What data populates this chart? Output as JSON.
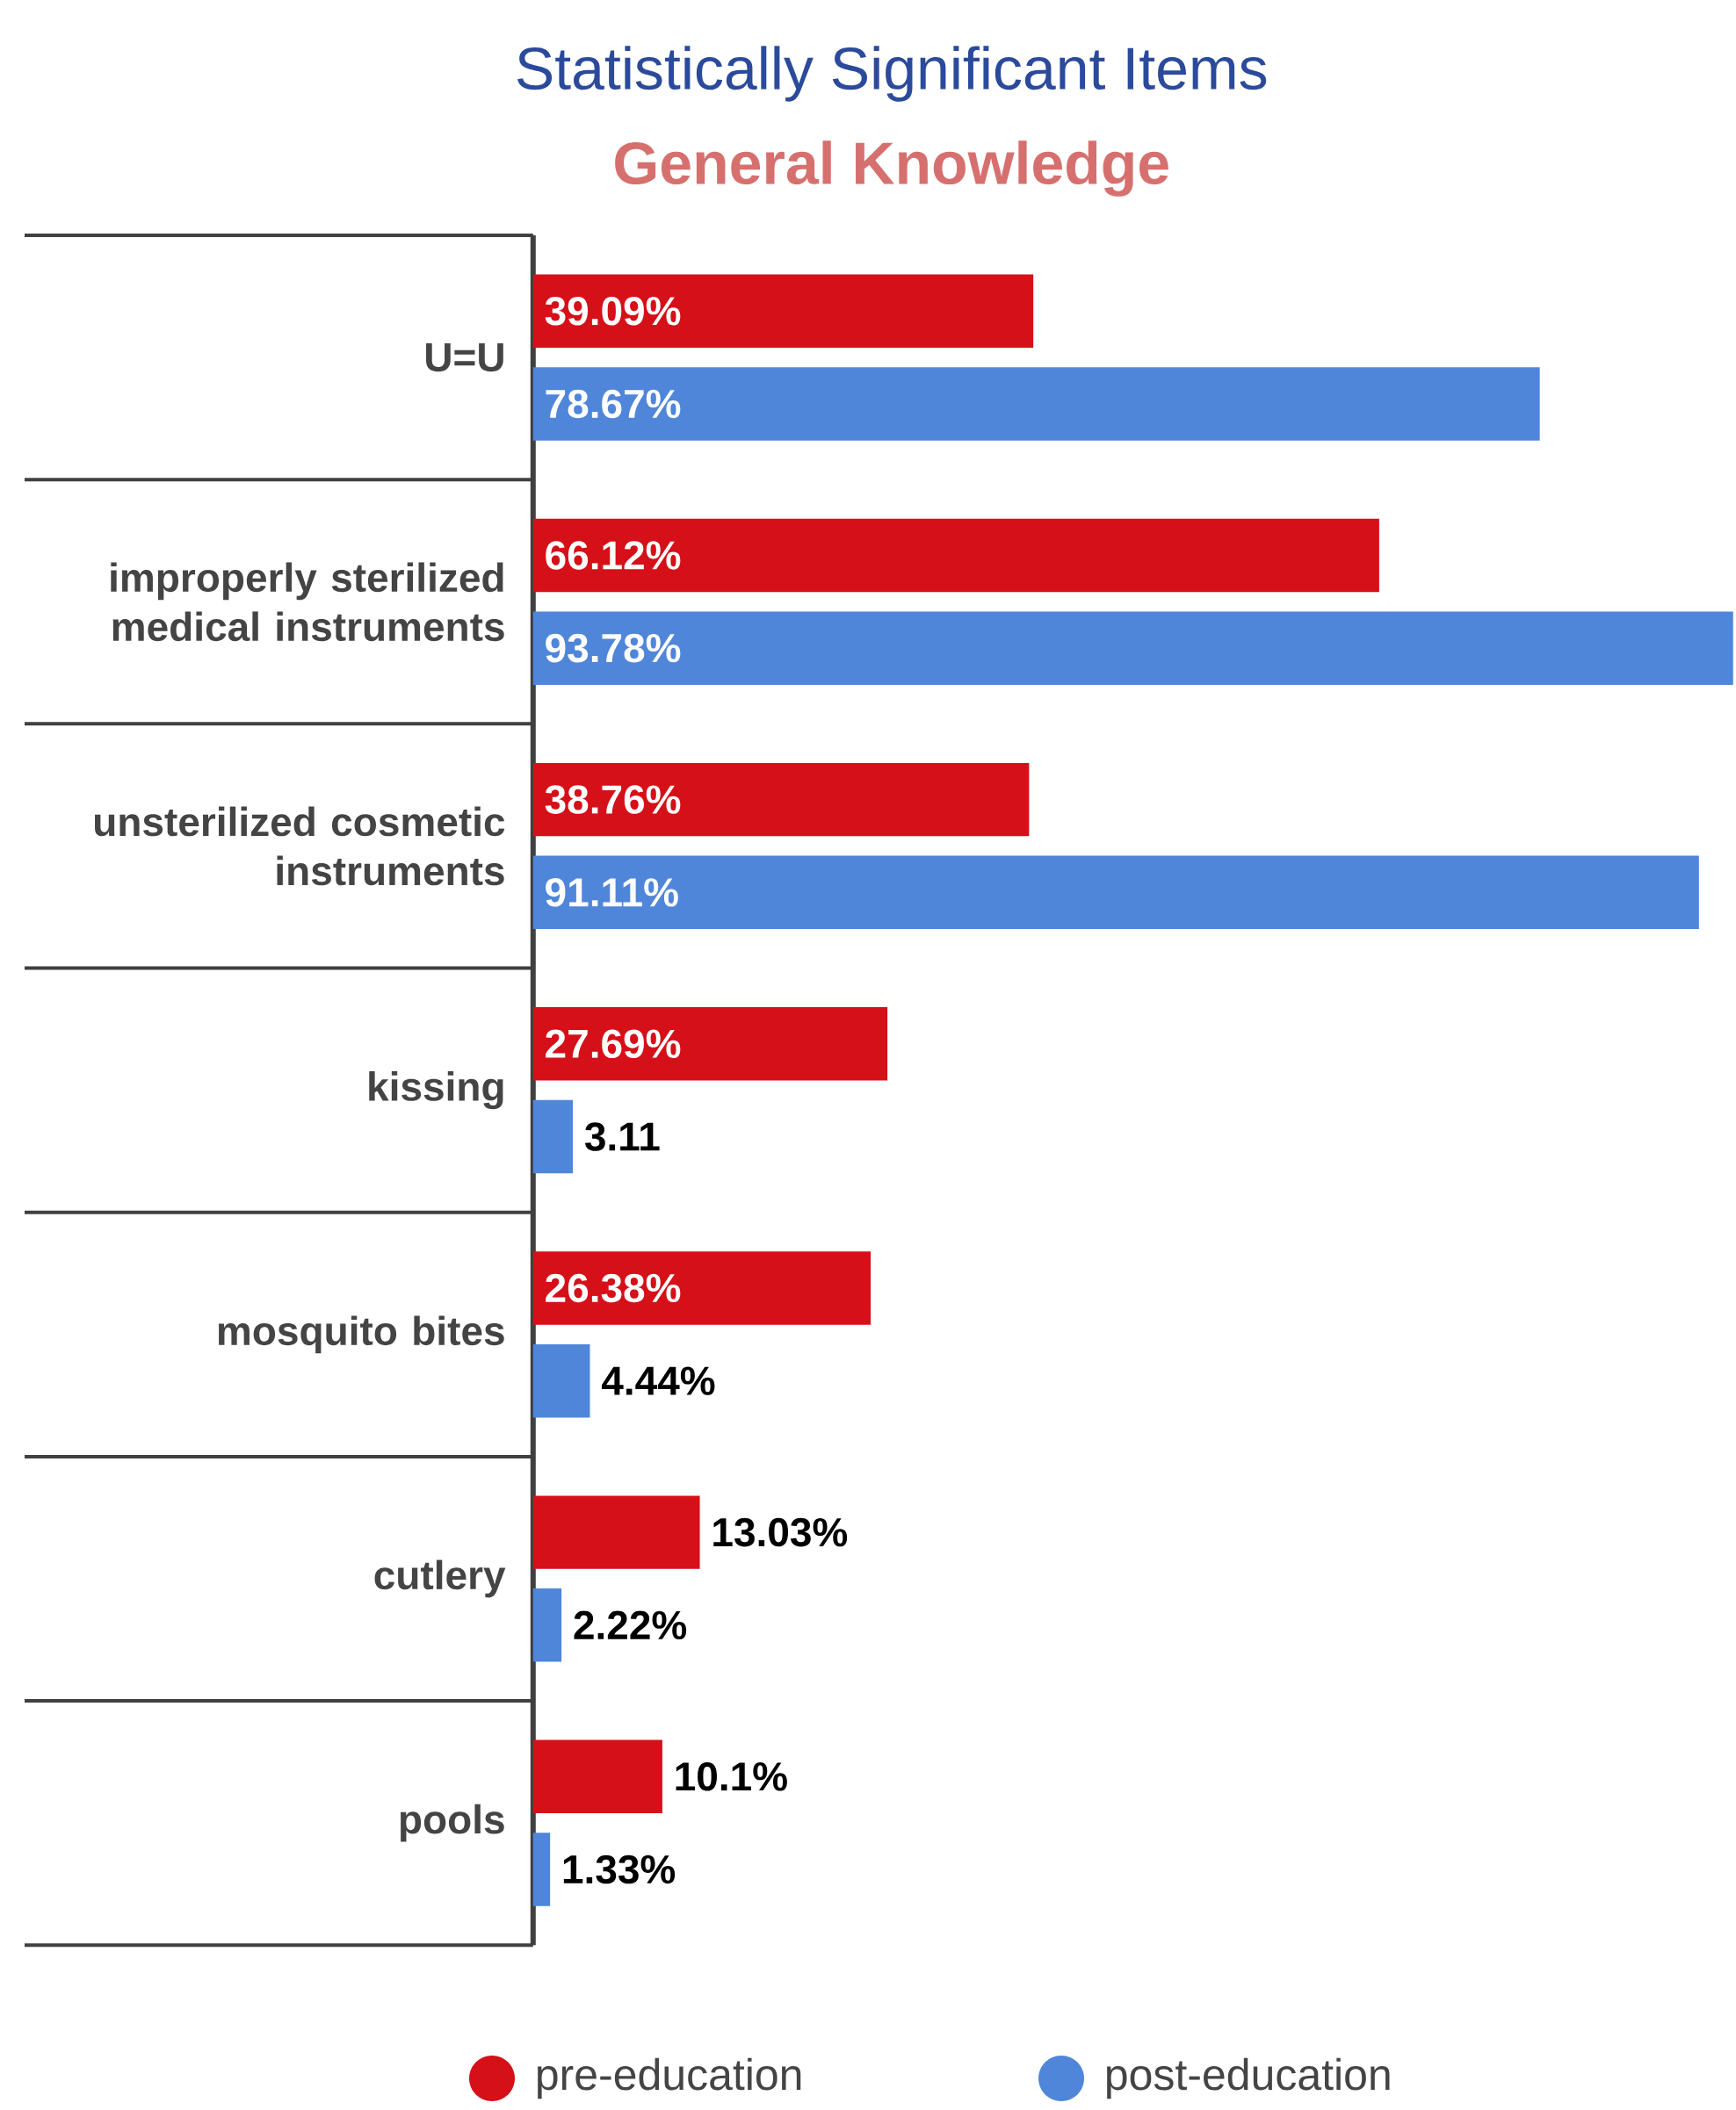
{
  "chart_data": {
    "type": "bar",
    "orientation": "horizontal",
    "title": "Statistically Significant Items",
    "subtitle": "General Knowledge",
    "categories": [
      "U=U",
      "improperly sterilized medical instruments",
      "unsterilized cosmetic instruments",
      "kissing",
      "mosquito bites",
      "cutlery",
      "pools"
    ],
    "series": [
      {
        "name": "pre-education",
        "color": "#d51018",
        "values": [
          39.09,
          66.12,
          38.76,
          27.69,
          26.38,
          13.03,
          10.1
        ],
        "value_labels": [
          "39.09%",
          "66.12%",
          "38.76%",
          "27.69%",
          "26.38%",
          "13.03%",
          "10.1%"
        ]
      },
      {
        "name": "post-education",
        "color": "#4f86d9",
        "values": [
          78.67,
          93.78,
          91.11,
          3.11,
          4.44,
          2.22,
          1.33
        ],
        "value_labels": [
          "78.67%",
          "93.78%",
          "91.11%",
          "3.11",
          "4.44%",
          "2.22%",
          "1.33%"
        ]
      }
    ],
    "xlim": [
      0,
      94
    ],
    "legend": "bottom",
    "tick_labels": "y"
  }
}
